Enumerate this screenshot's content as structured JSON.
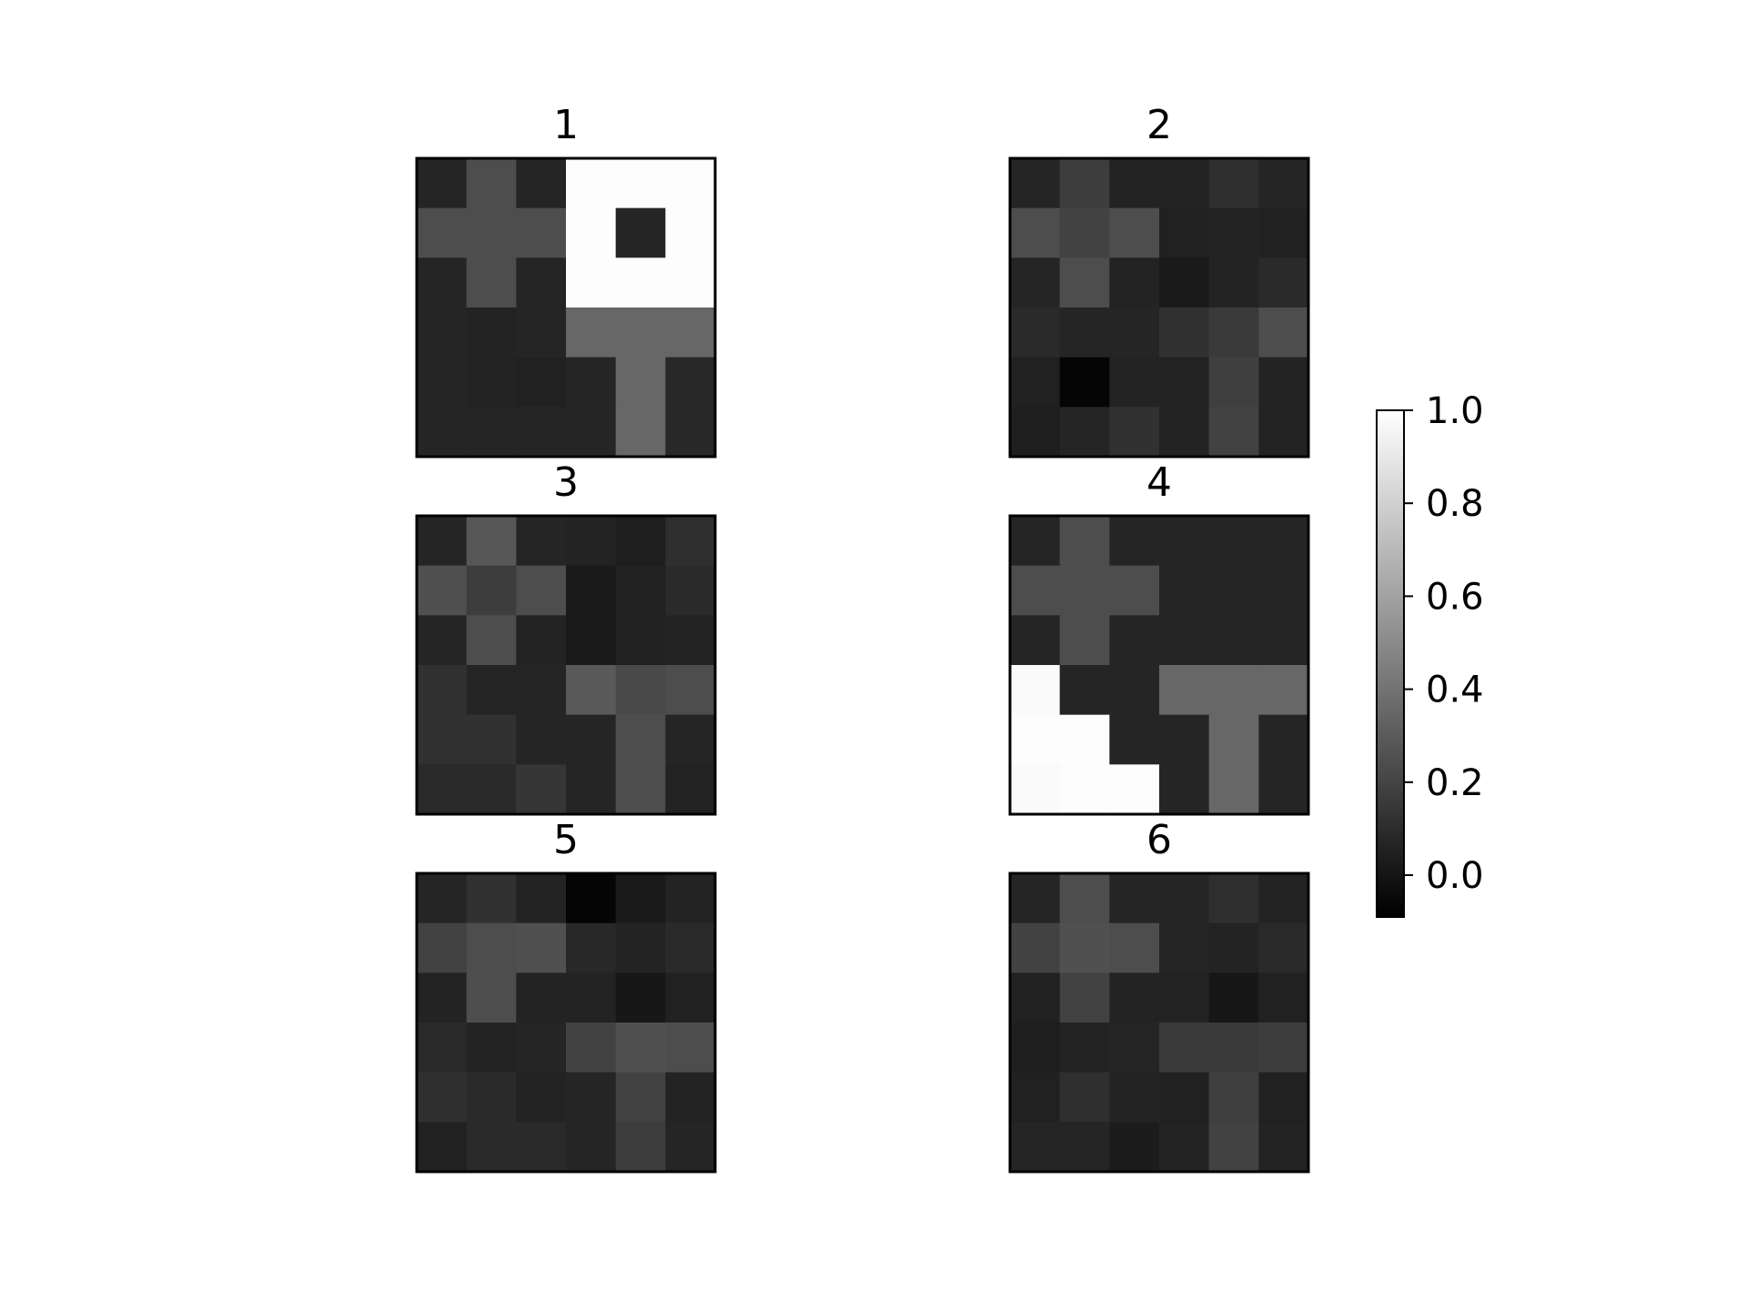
{
  "chart_data": [
    {
      "type": "heatmap",
      "title": "1",
      "values": [
        [
          0.07,
          0.24,
          0.07,
          0.99,
          0.99,
          0.99
        ],
        [
          0.24,
          0.24,
          0.24,
          0.99,
          0.07,
          0.99
        ],
        [
          0.07,
          0.24,
          0.07,
          0.99,
          0.99,
          0.99
        ],
        [
          0.07,
          0.06,
          0.07,
          0.35,
          0.35,
          0.35
        ],
        [
          0.07,
          0.06,
          0.05,
          0.07,
          0.35,
          0.08
        ],
        [
          0.07,
          0.07,
          0.07,
          0.07,
          0.35,
          0.08
        ]
      ]
    },
    {
      "type": "heatmap",
      "title": "2",
      "values": [
        [
          0.07,
          0.17,
          0.06,
          0.06,
          0.11,
          0.07
        ],
        [
          0.24,
          0.19,
          0.24,
          0.05,
          0.06,
          0.05
        ],
        [
          0.07,
          0.24,
          0.06,
          0.02,
          0.06,
          0.09
        ],
        [
          0.09,
          0.07,
          0.07,
          0.12,
          0.16,
          0.24
        ],
        [
          0.05,
          -0.07,
          0.06,
          0.06,
          0.18,
          0.06
        ],
        [
          0.04,
          0.07,
          0.12,
          0.06,
          0.19,
          0.06
        ]
      ]
    },
    {
      "type": "heatmap",
      "title": "3",
      "values": [
        [
          0.07,
          0.28,
          0.07,
          0.06,
          0.04,
          0.11
        ],
        [
          0.25,
          0.17,
          0.24,
          0.02,
          0.05,
          0.09
        ],
        [
          0.07,
          0.24,
          0.06,
          0.02,
          0.05,
          0.06
        ],
        [
          0.12,
          0.07,
          0.07,
          0.29,
          0.22,
          0.24
        ],
        [
          0.12,
          0.12,
          0.07,
          0.07,
          0.24,
          0.07
        ],
        [
          0.09,
          0.09,
          0.14,
          0.07,
          0.24,
          0.06
        ]
      ]
    },
    {
      "type": "heatmap",
      "title": "4",
      "values": [
        [
          0.07,
          0.24,
          0.07,
          0.07,
          0.07,
          0.07
        ],
        [
          0.24,
          0.24,
          0.24,
          0.07,
          0.07,
          0.07
        ],
        [
          0.07,
          0.24,
          0.07,
          0.07,
          0.07,
          0.07
        ],
        [
          0.98,
          0.07,
          0.07,
          0.35,
          0.35,
          0.35
        ],
        [
          0.99,
          0.99,
          0.07,
          0.07,
          0.35,
          0.07
        ],
        [
          0.98,
          0.99,
          0.99,
          0.07,
          0.35,
          0.07
        ]
      ]
    },
    {
      "type": "heatmap",
      "title": "5",
      "values": [
        [
          0.07,
          0.12,
          0.06,
          -0.07,
          0.02,
          0.06
        ],
        [
          0.19,
          0.24,
          0.25,
          0.08,
          0.06,
          0.09
        ],
        [
          0.06,
          0.24,
          0.06,
          0.06,
          0.01,
          0.05
        ],
        [
          0.09,
          0.06,
          0.07,
          0.19,
          0.25,
          0.24
        ],
        [
          0.11,
          0.09,
          0.06,
          0.07,
          0.19,
          0.06
        ],
        [
          0.05,
          0.09,
          0.09,
          0.07,
          0.17,
          0.07
        ]
      ]
    },
    {
      "type": "heatmap",
      "title": "6",
      "values": [
        [
          0.07,
          0.24,
          0.07,
          0.07,
          0.11,
          0.06
        ],
        [
          0.19,
          0.25,
          0.24,
          0.07,
          0.06,
          0.09
        ],
        [
          0.05,
          0.19,
          0.06,
          0.06,
          0.01,
          0.05
        ],
        [
          0.04,
          0.06,
          0.07,
          0.16,
          0.16,
          0.17
        ],
        [
          0.05,
          0.11,
          0.06,
          0.05,
          0.18,
          0.05
        ],
        [
          0.07,
          0.07,
          0.03,
          0.06,
          0.19,
          0.06
        ]
      ]
    }
  ],
  "colorbar": {
    "colormap": "gray",
    "vmin": -0.09,
    "vmax": 1.0,
    "tick_values": [
      0.0,
      0.2,
      0.4,
      0.6,
      0.8,
      1.0
    ],
    "tick_labels": [
      "0.0",
      "0.2",
      "0.4",
      "0.6",
      "0.8",
      "1.0"
    ]
  }
}
